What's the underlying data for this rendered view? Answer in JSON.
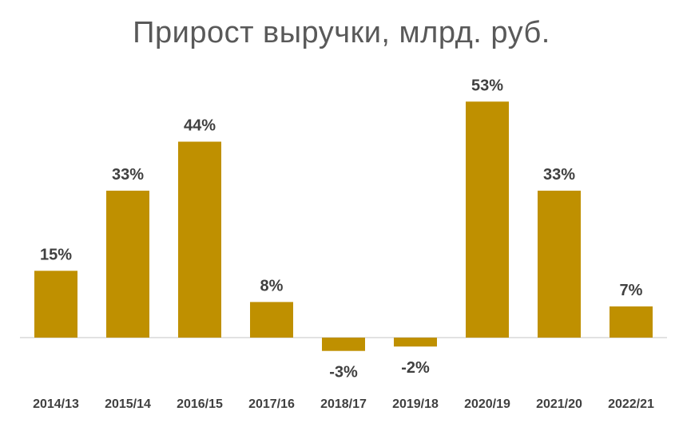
{
  "chart_data": {
    "type": "bar",
    "title": "Прирост выручки, млрд. руб.",
    "categories": [
      "2014/13",
      "2015/14",
      "2016/15",
      "2017/16",
      "2018/17",
      "2019/18",
      "2020/19",
      "2021/20",
      "2022/21"
    ],
    "values": [
      15,
      33,
      44,
      8,
      -3,
      -2,
      53,
      33,
      7
    ],
    "data_labels": [
      "15%",
      "33%",
      "44%",
      "8%",
      "-3%",
      "-2%",
      "53%",
      "33%",
      "7%"
    ],
    "xlabel": "",
    "ylabel": "",
    "grid": false,
    "legend": "none",
    "bar_color": "#BF9000",
    "axis_color": "#D9D9D9"
  }
}
